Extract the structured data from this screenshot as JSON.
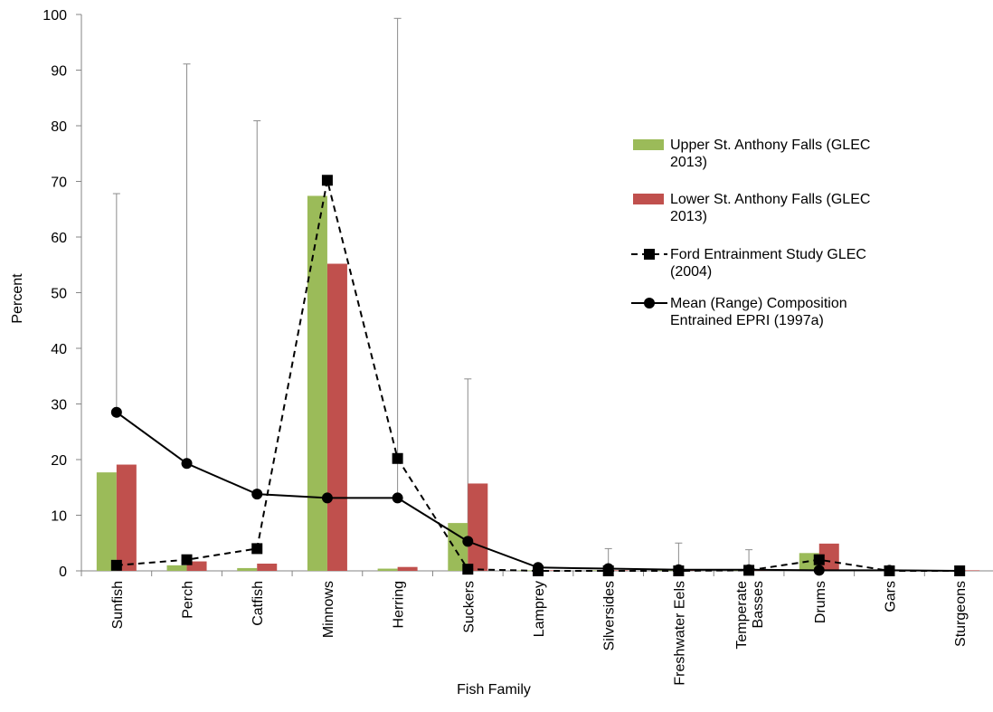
{
  "chart_data": {
    "type": "bar",
    "title": "",
    "xlabel": "Fish Family",
    "ylabel": "Percent",
    "ylim": [
      0,
      100
    ],
    "yticks": [
      0,
      10,
      20,
      30,
      40,
      50,
      60,
      70,
      80,
      90,
      100
    ],
    "categories": [
      [
        "Sunfish"
      ],
      [
        "Perch"
      ],
      [
        "Catfish"
      ],
      [
        "Minnows"
      ],
      [
        "Herring"
      ],
      [
        "Suckers"
      ],
      [
        "Lamprey"
      ],
      [
        "Silversides"
      ],
      [
        "Freshwater Eels"
      ],
      [
        "Temperate",
        "Basses"
      ],
      [
        "Drums"
      ],
      [
        "Gars"
      ],
      [
        "Sturgeons"
      ]
    ],
    "grid": false,
    "legend_position": "right",
    "series": [
      {
        "kind": "bar",
        "name": [
          "Upper St. Anthony Falls (GLEC",
          "2013)"
        ],
        "color": "#9BBB59",
        "values": [
          17.7,
          1.0,
          0.5,
          67.4,
          0.4,
          8.6,
          0.1,
          0.1,
          0.1,
          0.1,
          3.2,
          0.1,
          0.1
        ]
      },
      {
        "kind": "bar",
        "name": [
          "Lower St. Anthony Falls (GLEC",
          "2013)"
        ],
        "color": "#C0504D",
        "values": [
          19.1,
          1.7,
          1.3,
          55.2,
          0.7,
          15.7,
          0.1,
          0.1,
          0.1,
          0.1,
          4.9,
          0.1,
          0.1
        ]
      },
      {
        "kind": "line",
        "style": "dashed",
        "marker": "square",
        "name": [
          "Ford Entrainment Study GLEC",
          "(2004)"
        ],
        "color": "#000000",
        "values": [
          1.0,
          2.0,
          4.0,
          70.2,
          20.2,
          0.3,
          0.0,
          0.0,
          0.0,
          0.1,
          2.0,
          0.0,
          0.0
        ]
      },
      {
        "kind": "line",
        "style": "solid",
        "marker": "circle",
        "name": [
          "Mean (Range) Composition",
          "Entrained EPRI (1997a)"
        ],
        "color": "#000000",
        "values": [
          28.5,
          19.3,
          13.8,
          13.1,
          13.1,
          5.3,
          0.6,
          0.4,
          0.2,
          0.2,
          0.1,
          0.1,
          0.0
        ],
        "range_max": [
          67.8,
          91.1,
          80.9,
          null,
          99.3,
          34.5,
          null,
          4.0,
          5.0,
          3.8,
          null,
          null,
          null
        ]
      }
    ]
  }
}
